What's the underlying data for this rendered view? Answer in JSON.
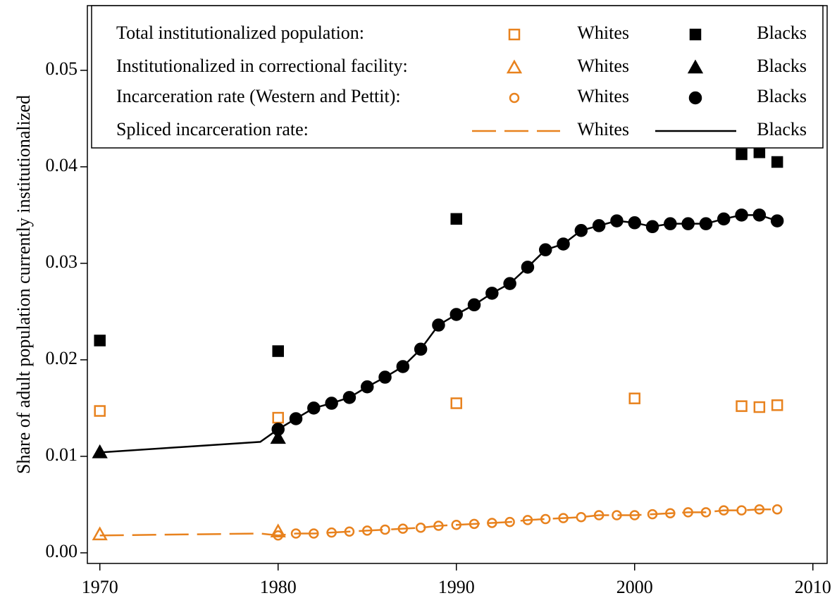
{
  "chart_data": {
    "type": "line",
    "y_label": "Share of adult population currently institutionalized",
    "xlim": [
      1969.3,
      2010.8
    ],
    "ylim": [
      -0.0011,
      0.0567
    ],
    "xticks": [
      1970,
      1980,
      1990,
      2000,
      2010
    ],
    "yticks": [
      {
        "value": 0,
        "label": "0.00"
      },
      0.01,
      0.02,
      0.03,
      0.04,
      0.05
    ],
    "legend": "top",
    "groups": [
      {
        "label": "Total institutionalized population:",
        "series": [
          {
            "name": "Whites",
            "color": "#e8821e",
            "marker": "square",
            "filled": false,
            "line": "none",
            "x": [
              1970,
              1980,
              1990,
              2000,
              2006,
              2007,
              2008
            ],
            "values": [
              0.0147,
              0.014,
              0.0155,
              0.016,
              0.0152,
              0.0151,
              0.0153
            ]
          },
          {
            "name": "Blacks",
            "color": "#000000",
            "marker": "square",
            "filled": true,
            "line": "none",
            "x": [
              1970,
              1980,
              1990,
              2006,
              2007,
              2008
            ],
            "values": [
              0.022,
              0.0209,
              0.0346,
              0.0413,
              0.0415,
              0.0405
            ]
          }
        ]
      },
      {
        "label": "Institutionalized in correctional facility:",
        "series": [
          {
            "name": "Whites",
            "color": "#e8821e",
            "marker": "triangle",
            "filled": false,
            "line": "none",
            "x": [
              1970,
              1980
            ],
            "values": [
              0.0019,
              0.0022
            ]
          },
          {
            "name": "Blacks",
            "color": "#000000",
            "marker": "triangle",
            "filled": true,
            "line": "none",
            "x": [
              1970,
              1980
            ],
            "values": [
              0.0104,
              0.0119
            ]
          }
        ]
      },
      {
        "label": "Incarceration rate (Western and Pettit):",
        "series": [
          {
            "name": "Whites",
            "color": "#e8821e",
            "marker": "circle",
            "filled": false,
            "line": "none",
            "x": [
              1980,
              1981,
              1982,
              1983,
              1984,
              1985,
              1986,
              1987,
              1988,
              1989,
              1990,
              1991,
              1992,
              1993,
              1994,
              1995,
              1996,
              1997,
              1998,
              1999,
              2000,
              2001,
              2002,
              2003,
              2004,
              2005,
              2006,
              2007,
              2008
            ],
            "values": [
              0.0018,
              0.002,
              0.002,
              0.0021,
              0.0022,
              0.0023,
              0.0024,
              0.0025,
              0.0026,
              0.0028,
              0.0029,
              0.003,
              0.0031,
              0.0032,
              0.0034,
              0.0035,
              0.0036,
              0.0037,
              0.0039,
              0.0039,
              0.0039,
              0.004,
              0.0041,
              0.0042,
              0.0042,
              0.0044,
              0.0044,
              0.0045,
              0.0045
            ]
          },
          {
            "name": "Blacks",
            "color": "#000000",
            "marker": "circle",
            "filled": true,
            "line": "none",
            "x": [
              1980,
              1981,
              1982,
              1983,
              1984,
              1985,
              1986,
              1987,
              1988,
              1989,
              1990,
              1991,
              1992,
              1993,
              1994,
              1995,
              1996,
              1997,
              1998,
              1999,
              2000,
              2001,
              2002,
              2003,
              2004,
              2005,
              2006,
              2007,
              2008
            ],
            "values": [
              0.0128,
              0.0139,
              0.015,
              0.0155,
              0.0161,
              0.0172,
              0.0182,
              0.0193,
              0.0211,
              0.0236,
              0.0247,
              0.0257,
              0.0269,
              0.0279,
              0.0296,
              0.0314,
              0.032,
              0.0334,
              0.0339,
              0.0344,
              0.0342,
              0.0338,
              0.0341,
              0.0341,
              0.0341,
              0.0346,
              0.035,
              0.035,
              0.0344
            ]
          }
        ]
      },
      {
        "label": "Spliced incarceration rate:",
        "series": [
          {
            "name": "Whites",
            "color": "#e8821e",
            "marker": "none",
            "line": "dashed",
            "x": [
              1970,
              1979,
              1980,
              1981,
              1982,
              1983,
              1984,
              1985,
              1986,
              1987,
              1988,
              1989,
              1990,
              1991,
              1992,
              1993,
              1994,
              1995,
              1996,
              1997,
              1998,
              1999,
              2000,
              2001,
              2002,
              2003,
              2004,
              2005,
              2006,
              2007,
              2008
            ],
            "values": [
              0.0018,
              0.002,
              0.0018,
              0.002,
              0.002,
              0.0021,
              0.0022,
              0.0023,
              0.0024,
              0.0025,
              0.0026,
              0.0028,
              0.0029,
              0.003,
              0.0031,
              0.0032,
              0.0034,
              0.0035,
              0.0036,
              0.0037,
              0.0039,
              0.0039,
              0.0039,
              0.004,
              0.0041,
              0.0042,
              0.0042,
              0.0044,
              0.0044,
              0.0045,
              0.0045
            ]
          },
          {
            "name": "Blacks",
            "color": "#000000",
            "marker": "none",
            "line": "solid",
            "x": [
              1970,
              1979,
              1980,
              1981,
              1982,
              1983,
              1984,
              1985,
              1986,
              1987,
              1988,
              1989,
              1990,
              1991,
              1992,
              1993,
              1994,
              1995,
              1996,
              1997,
              1998,
              1999,
              2000,
              2001,
              2002,
              2003,
              2004,
              2005,
              2006,
              2007,
              2008
            ],
            "values": [
              0.0104,
              0.0115,
              0.0128,
              0.0139,
              0.015,
              0.0155,
              0.0161,
              0.0172,
              0.0182,
              0.0193,
              0.0211,
              0.0236,
              0.0247,
              0.0257,
              0.0269,
              0.0279,
              0.0296,
              0.0314,
              0.032,
              0.0334,
              0.0339,
              0.0344,
              0.0342,
              0.0338,
              0.0341,
              0.0341,
              0.0341,
              0.0346,
              0.035,
              0.035,
              0.0344
            ]
          }
        ]
      }
    ]
  }
}
